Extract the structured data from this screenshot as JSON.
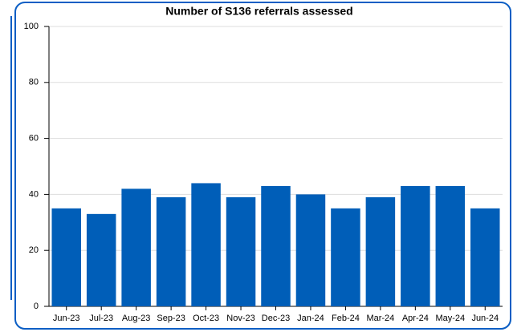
{
  "chart_data": {
    "type": "bar",
    "title": "Number of S136 referrals assessed",
    "categories": [
      "Jun-23",
      "Jul-23",
      "Aug-23",
      "Sep-23",
      "Oct-23",
      "Nov-23",
      "Dec-23",
      "Jan-24",
      "Feb-24",
      "Mar-24",
      "Apr-24",
      "May-24",
      "Jun-24"
    ],
    "values": [
      35,
      33,
      42,
      39,
      44,
      39,
      43,
      40,
      35,
      39,
      43,
      43,
      35
    ],
    "color": "#005eb8",
    "ylim": [
      0,
      100
    ],
    "yticks": [
      0,
      20,
      40,
      60,
      80,
      100
    ],
    "grid": true
  }
}
